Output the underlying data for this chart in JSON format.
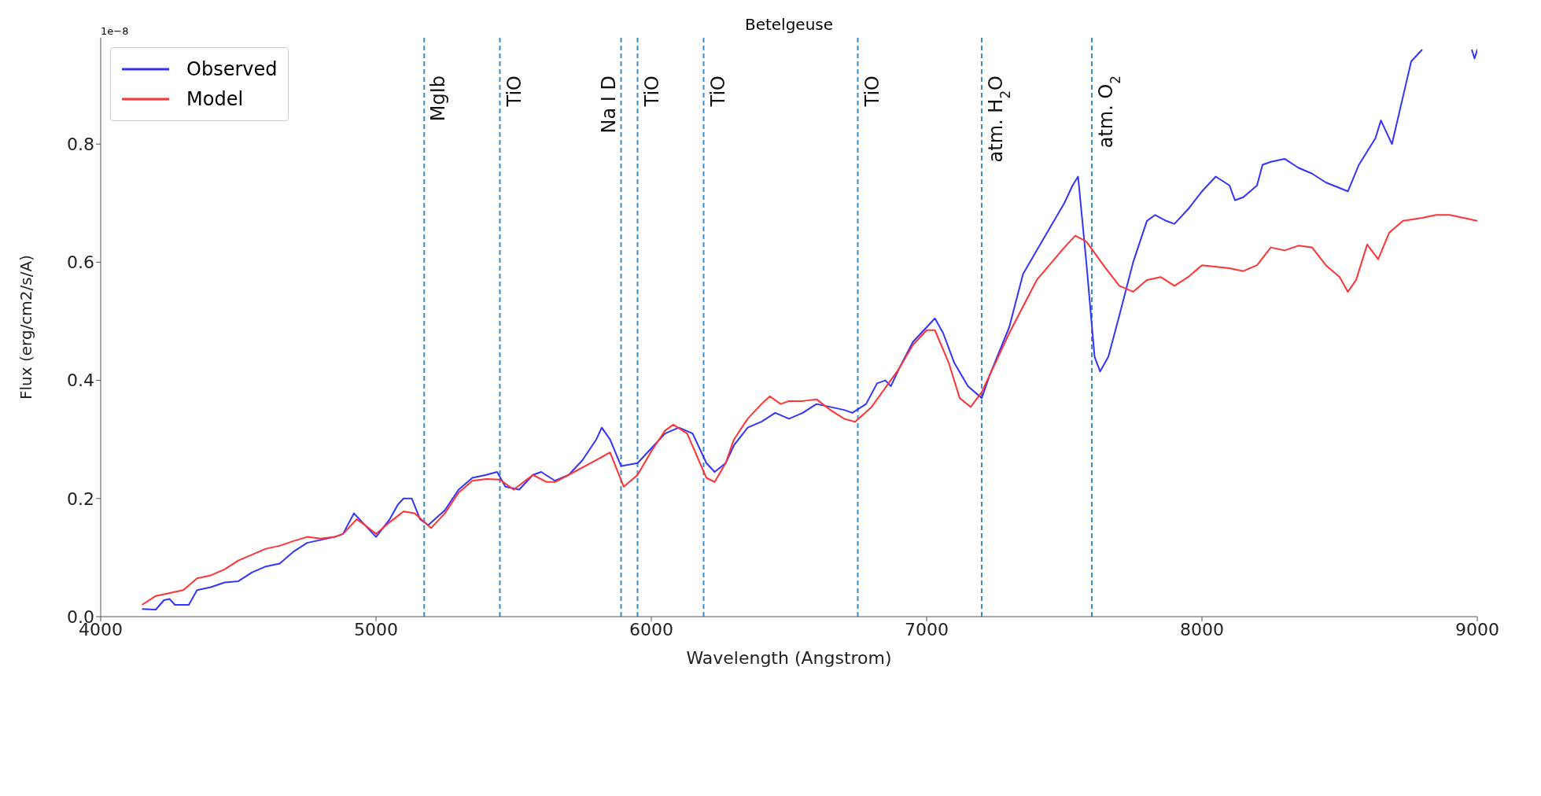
{
  "chart_data": {
    "type": "line",
    "title": "Betelgeuse",
    "xlabel": "Wavelength (Angstrom)",
    "ylabel": "Flux (erg/cm2/s/A)",
    "annotations": [
      "1e−8"
    ],
    "xlim": [
      4000,
      9000
    ],
    "xticks": [
      4000,
      5000,
      6000,
      7000,
      8000,
      9000
    ],
    "ylim": [
      0,
      0.98
    ],
    "yticks": [
      {
        "value": 0,
        "label": "0.0"
      },
      0.2,
      0.4,
      0.6,
      0.8
    ],
    "grid": false,
    "legend": "top left",
    "marker": "none",
    "line_style": "solid",
    "ref_lines": [
      {
        "axis": "x",
        "value": 5175,
        "label": "MgIb",
        "color": "#3a8dc5",
        "line_style": "dashed"
      },
      {
        "axis": "x",
        "value": 5450,
        "label": "TiO",
        "color": "#3a8dc5",
        "line_style": "dashed"
      },
      {
        "axis": "x",
        "value": 5890,
        "label": "Na I D",
        "color": "#3a8dc5",
        "line_style": "dashed"
      },
      {
        "axis": "x",
        "value": 5950,
        "label": "TiO",
        "color": "#3a8dc5",
        "line_style": "dashed"
      },
      {
        "axis": "x",
        "value": 6190,
        "label": "TiO",
        "color": "#3a8dc5",
        "line_style": "dashed"
      },
      {
        "axis": "x",
        "value": 6750,
        "label": "TiO",
        "color": "#3a8dc5",
        "line_style": "dashed"
      },
      {
        "axis": "x",
        "value": 7200,
        "label": "atm. H$_{2}$O",
        "color": "#3a8dc5",
        "line_style": "dashed"
      },
      {
        "axis": "x",
        "value": 7600,
        "label": "atm. O$_{2}$",
        "color": "#3a8dc5",
        "line_style": "dashed"
      }
    ],
    "series": [
      {
        "name": "Observed",
        "color": "#3333ff",
        "x": [
          4150,
          4200,
          4230,
          4250,
          4270,
          4320,
          4350,
          4400,
          4450,
          4500,
          4550,
          4600,
          4650,
          4700,
          4750,
          4800,
          4850,
          4880,
          4920,
          4950,
          5000,
          5050,
          5080,
          5100,
          5130,
          5160,
          5190,
          5250,
          5300,
          5350,
          5400,
          5440,
          5470,
          5520,
          5570,
          5600,
          5650,
          5700,
          5750,
          5800,
          5820,
          5850,
          5890,
          5950,
          6000,
          6050,
          6100,
          6150,
          6200,
          6230,
          6270,
          6300,
          6350,
          6400,
          6450,
          6500,
          6550,
          6600,
          6650,
          6700,
          6730,
          6780,
          6820,
          6850,
          6870,
          6900,
          6950,
          7000,
          7030,
          7060,
          7100,
          7150,
          7200,
          7230,
          7300,
          7350,
          7400,
          7450,
          7500,
          7530,
          7550,
          7580,
          7610,
          7630,
          7660,
          7700,
          7750,
          7800,
          7830,
          7870,
          7900,
          7950,
          8000,
          8050,
          8100,
          8120,
          8150,
          8200,
          8220,
          8250,
          8300,
          8350,
          8400,
          8450,
          8530,
          8570,
          8630,
          8650,
          8690,
          8730,
          8760,
          8800,
          8850,
          8900,
          8960,
          8980,
          8990,
          9000
        ],
        "values": [
          0.013,
          0.012,
          0.028,
          0.03,
          0.02,
          0.02,
          0.045,
          0.05,
          0.058,
          0.06,
          0.075,
          0.085,
          0.09,
          0.11,
          0.125,
          0.13,
          0.135,
          0.14,
          0.175,
          0.16,
          0.135,
          0.165,
          0.19,
          0.2,
          0.2,
          0.165,
          0.155,
          0.18,
          0.215,
          0.235,
          0.24,
          0.245,
          0.22,
          0.215,
          0.24,
          0.245,
          0.23,
          0.24,
          0.265,
          0.3,
          0.32,
          0.3,
          0.255,
          0.26,
          0.285,
          0.31,
          0.32,
          0.31,
          0.26,
          0.245,
          0.26,
          0.29,
          0.32,
          0.33,
          0.345,
          0.335,
          0.345,
          0.36,
          0.355,
          0.35,
          0.345,
          0.36,
          0.395,
          0.4,
          0.39,
          0.42,
          0.465,
          0.49,
          0.505,
          0.48,
          0.43,
          0.39,
          0.37,
          0.41,
          0.49,
          0.58,
          0.62,
          0.66,
          0.7,
          0.73,
          0.745,
          0.6,
          0.44,
          0.415,
          0.44,
          0.51,
          0.6,
          0.67,
          0.68,
          0.67,
          0.665,
          0.69,
          0.72,
          0.745,
          0.73,
          0.705,
          0.71,
          0.73,
          0.765,
          0.77,
          0.775,
          0.76,
          0.75,
          0.735,
          0.72,
          0.765,
          0.81,
          0.84,
          0.8,
          0.88,
          0.94,
          0.96,
          null,
          null,
          null,
          0.96,
          0.945,
          0.96
        ]
      },
      {
        "name": "Model",
        "color": "#ff3333",
        "x": [
          4150,
          4200,
          4300,
          4350,
          4400,
          4450,
          4500,
          4550,
          4600,
          4650,
          4700,
          4750,
          4800,
          4850,
          4880,
          4930,
          4960,
          5000,
          5050,
          5100,
          5140,
          5200,
          5250,
          5300,
          5350,
          5400,
          5450,
          5500,
          5570,
          5620,
          5650,
          5700,
          5800,
          5850,
          5900,
          5950,
          6000,
          6050,
          6080,
          6130,
          6200,
          6230,
          6270,
          6300,
          6350,
          6400,
          6430,
          6470,
          6500,
          6550,
          6600,
          6650,
          6700,
          6740,
          6800,
          6900,
          6950,
          7000,
          7030,
          7080,
          7120,
          7160,
          7200,
          7300,
          7400,
          7500,
          7540,
          7580,
          7650,
          7700,
          7750,
          7800,
          7850,
          7900,
          7950,
          8000,
          8100,
          8150,
          8200,
          8250,
          8300,
          8350,
          8400,
          8450,
          8500,
          8530,
          8560,
          8600,
          8640,
          8680,
          8730,
          8800,
          8850,
          8900,
          9000
        ],
        "values": [
          0.02,
          0.035,
          0.045,
          0.065,
          0.07,
          0.08,
          0.095,
          0.105,
          0.115,
          0.12,
          0.128,
          0.135,
          0.132,
          0.135,
          0.14,
          0.165,
          0.155,
          0.14,
          0.16,
          0.178,
          0.175,
          0.15,
          0.175,
          0.21,
          0.23,
          0.233,
          0.232,
          0.215,
          0.24,
          0.228,
          0.228,
          0.24,
          0.265,
          0.278,
          0.22,
          0.24,
          0.28,
          0.315,
          0.325,
          0.31,
          0.235,
          0.228,
          0.26,
          0.3,
          0.335,
          0.36,
          0.373,
          0.36,
          0.365,
          0.365,
          0.368,
          0.35,
          0.335,
          0.33,
          0.355,
          0.42,
          0.46,
          0.485,
          0.485,
          0.43,
          0.37,
          0.355,
          0.38,
          0.48,
          0.57,
          0.625,
          0.645,
          0.635,
          0.59,
          0.56,
          0.55,
          0.57,
          0.575,
          0.56,
          0.575,
          0.595,
          0.59,
          0.585,
          0.595,
          0.625,
          0.62,
          0.628,
          0.625,
          0.595,
          0.575,
          0.55,
          0.57,
          0.63,
          0.605,
          0.65,
          0.67,
          0.675,
          0.68,
          0.68,
          0.67
        ]
      }
    ]
  }
}
